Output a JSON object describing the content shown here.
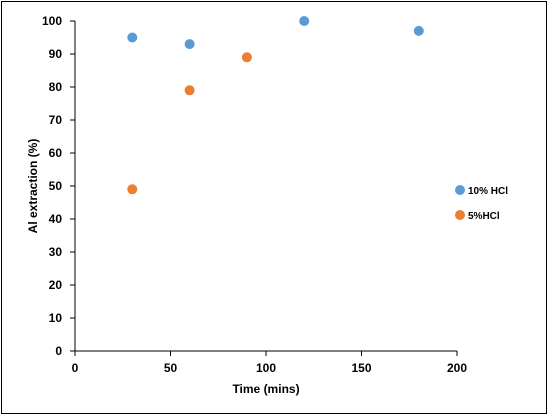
{
  "chart_data": {
    "type": "scatter",
    "title": "",
    "xlabel": "Time (mins)",
    "ylabel": "Al extraction (%)",
    "xlim": [
      0,
      200
    ],
    "ylim": [
      0,
      100
    ],
    "xticks": [
      0,
      50,
      100,
      150,
      200
    ],
    "yticks": [
      0,
      10,
      20,
      30,
      40,
      50,
      60,
      70,
      80,
      90,
      100
    ],
    "grid": false,
    "legend_position": "right",
    "series": [
      {
        "name": "10% HCl",
        "color": "#5B9BD5",
        "points": [
          {
            "x": 30,
            "y": 95
          },
          {
            "x": 60,
            "y": 93
          },
          {
            "x": 120,
            "y": 100
          },
          {
            "x": 180,
            "y": 97
          }
        ]
      },
      {
        "name": "5%HCl",
        "color": "#ED7D31",
        "points": [
          {
            "x": 30,
            "y": 49
          },
          {
            "x": 60,
            "y": 79
          },
          {
            "x": 90,
            "y": 89
          }
        ]
      }
    ]
  }
}
